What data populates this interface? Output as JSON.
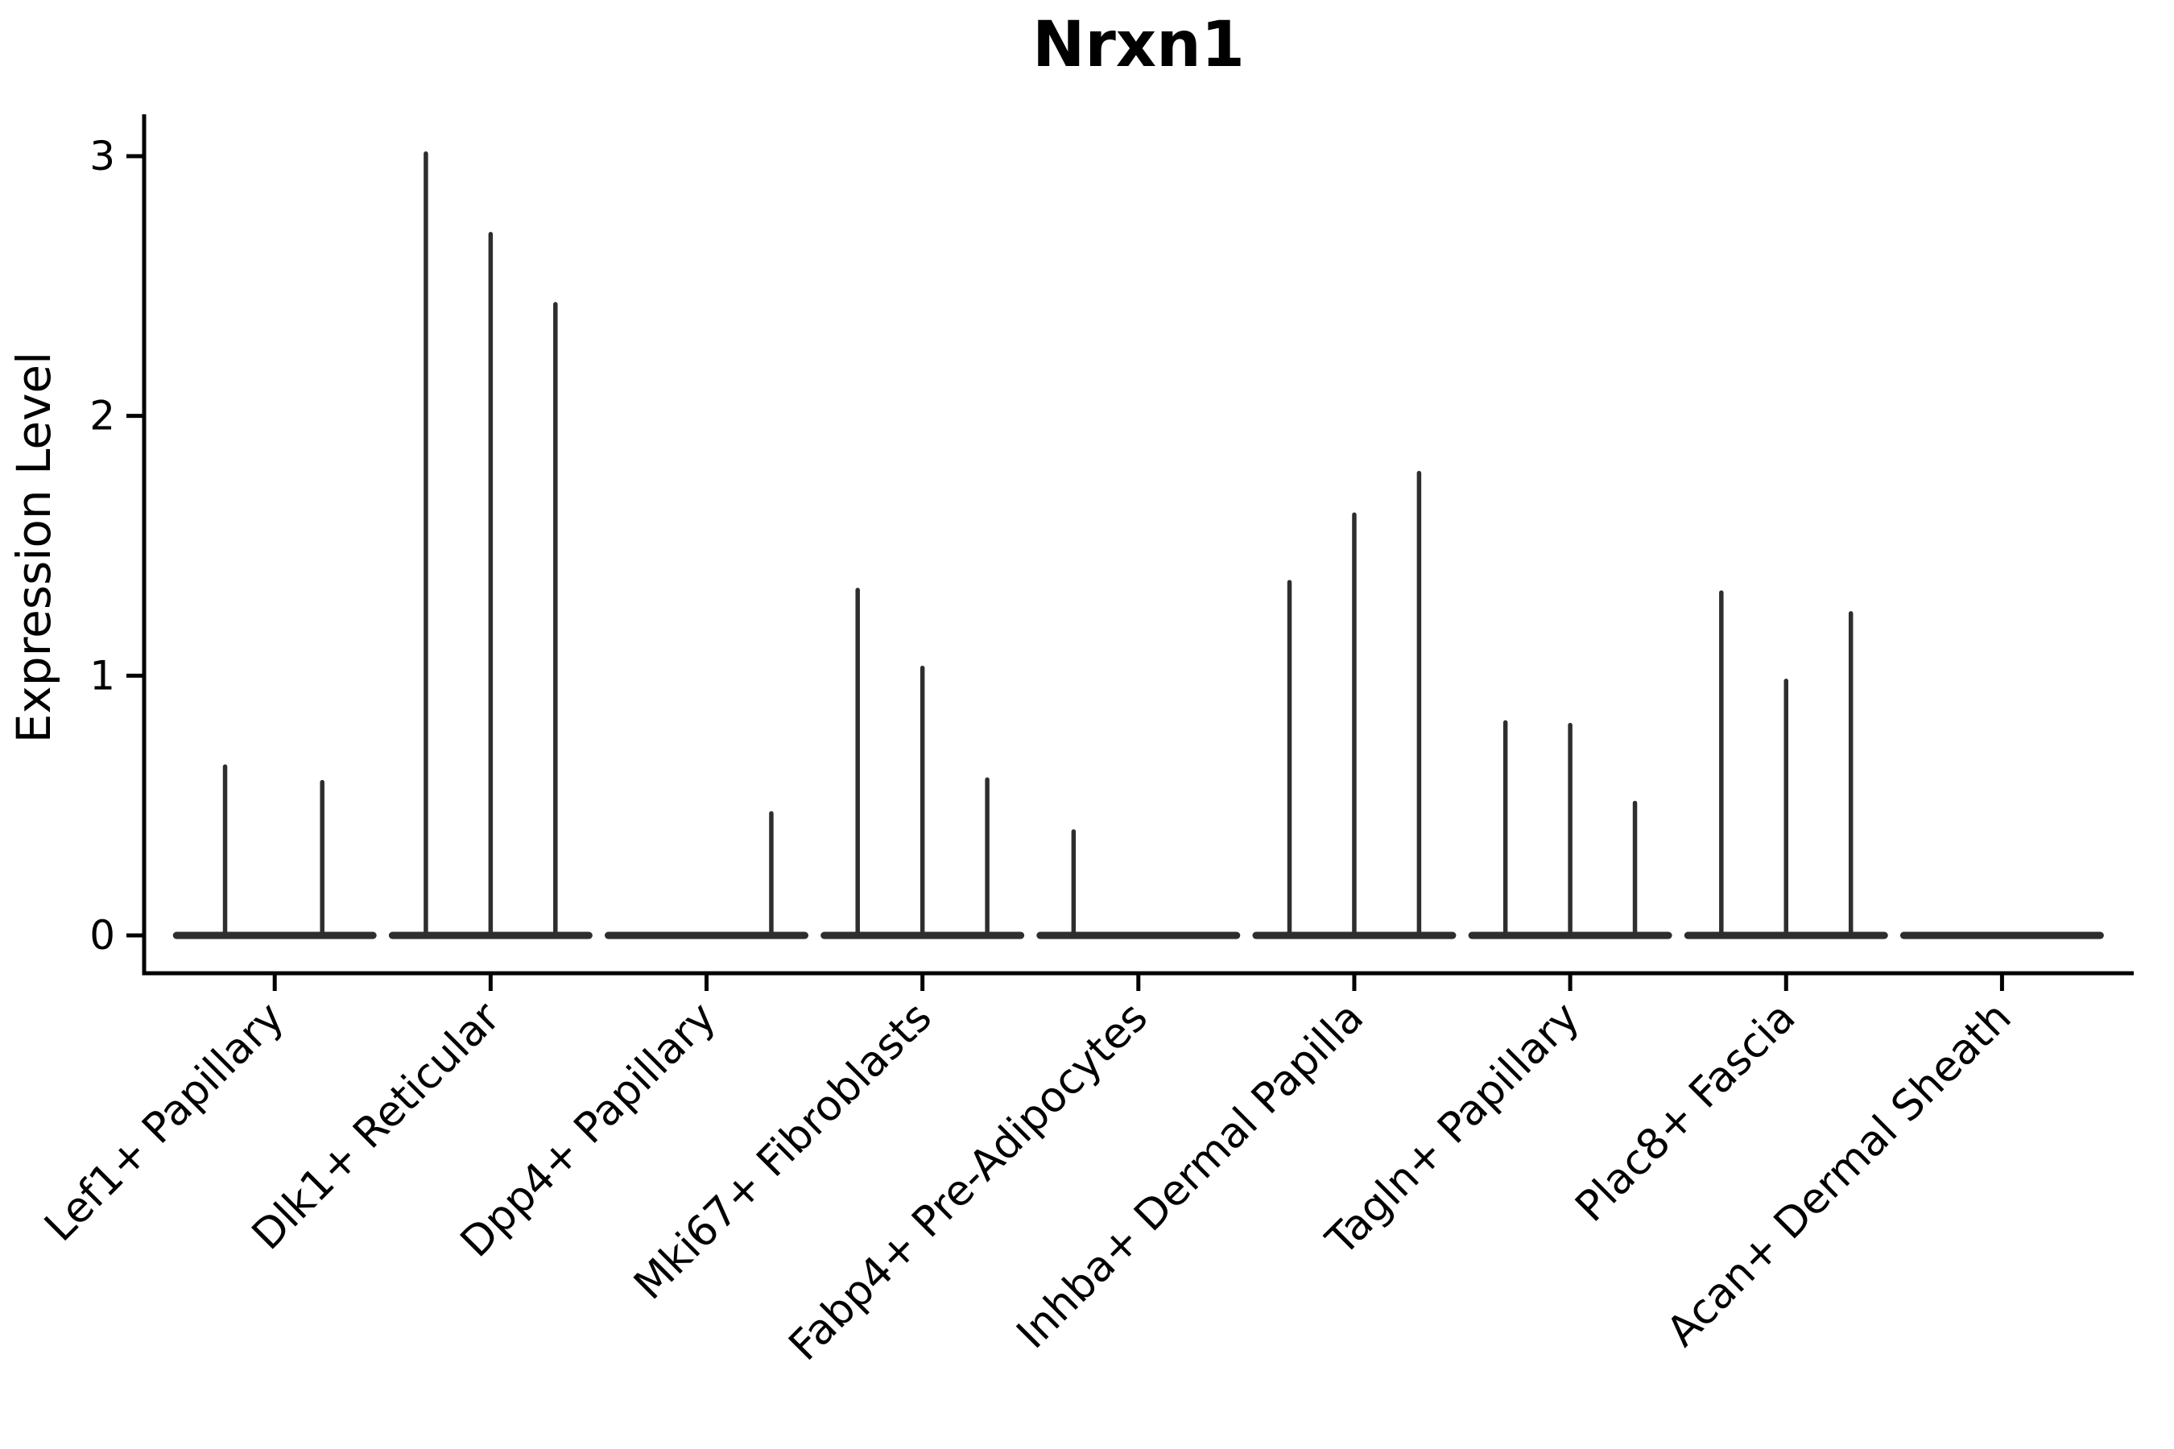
{
  "title": "Nrxn1",
  "colors": {
    "axis": "#000000",
    "violin": "#2e2e2e",
    "background": "#ffffff",
    "text": "#000000"
  },
  "chart_data": {
    "type": "violin",
    "title": "Nrxn1",
    "xlabel": "",
    "ylabel": "Expression Level",
    "ylim": [
      0,
      3.16
    ],
    "yticks": [
      "0",
      "1",
      "2",
      "3"
    ],
    "ytick_values": [
      0,
      1,
      2,
      3
    ],
    "grid": "off",
    "legend": "none",
    "description": "Stacked violin plot of Nrxn1 expression; each category shows a flat violin base at 0 with up to three thin density spikes (sub-violins at offsets -0.3, 0, +0.3 of category spacing). Spike entries give offset fraction and maximum expression value.",
    "categories": [
      {
        "label": "Lef1+ Papillary",
        "spikes": [
          {
            "offset": -0.23,
            "max": 0.65
          },
          {
            "offset": 0.22,
            "max": 0.59
          }
        ]
      },
      {
        "label": "Dlk1+ Reticular",
        "spikes": [
          {
            "offset": -0.3,
            "max": 3.01
          },
          {
            "offset": 0.0,
            "max": 2.7
          },
          {
            "offset": 0.3,
            "max": 2.43
          }
        ]
      },
      {
        "label": "Dpp4+ Papillary",
        "spikes": [
          {
            "offset": 0.3,
            "max": 0.47
          }
        ]
      },
      {
        "label": "Mki67+ Fibroblasts",
        "spikes": [
          {
            "offset": -0.3,
            "max": 1.33
          },
          {
            "offset": 0.0,
            "max": 1.03
          },
          {
            "offset": 0.3,
            "max": 0.6
          }
        ]
      },
      {
        "label": "Fabp4+ Pre-Adipocytes",
        "spikes": [
          {
            "offset": -0.3,
            "max": 0.4
          }
        ]
      },
      {
        "label": "Inhba+ Dermal Papilla",
        "spikes": [
          {
            "offset": -0.3,
            "max": 1.36
          },
          {
            "offset": 0.0,
            "max": 1.62
          },
          {
            "offset": 0.3,
            "max": 1.78
          }
        ]
      },
      {
        "label": "Tagln+ Papillary",
        "spikes": [
          {
            "offset": -0.3,
            "max": 0.82
          },
          {
            "offset": 0.0,
            "max": 0.81
          },
          {
            "offset": 0.3,
            "max": 0.51
          }
        ]
      },
      {
        "label": "Plac8+ Fascia",
        "spikes": [
          {
            "offset": -0.3,
            "max": 1.32
          },
          {
            "offset": 0.0,
            "max": 0.98
          },
          {
            "offset": 0.3,
            "max": 1.24
          }
        ]
      },
      {
        "label": "Acan+ Dermal Sheath",
        "spikes": []
      }
    ]
  }
}
